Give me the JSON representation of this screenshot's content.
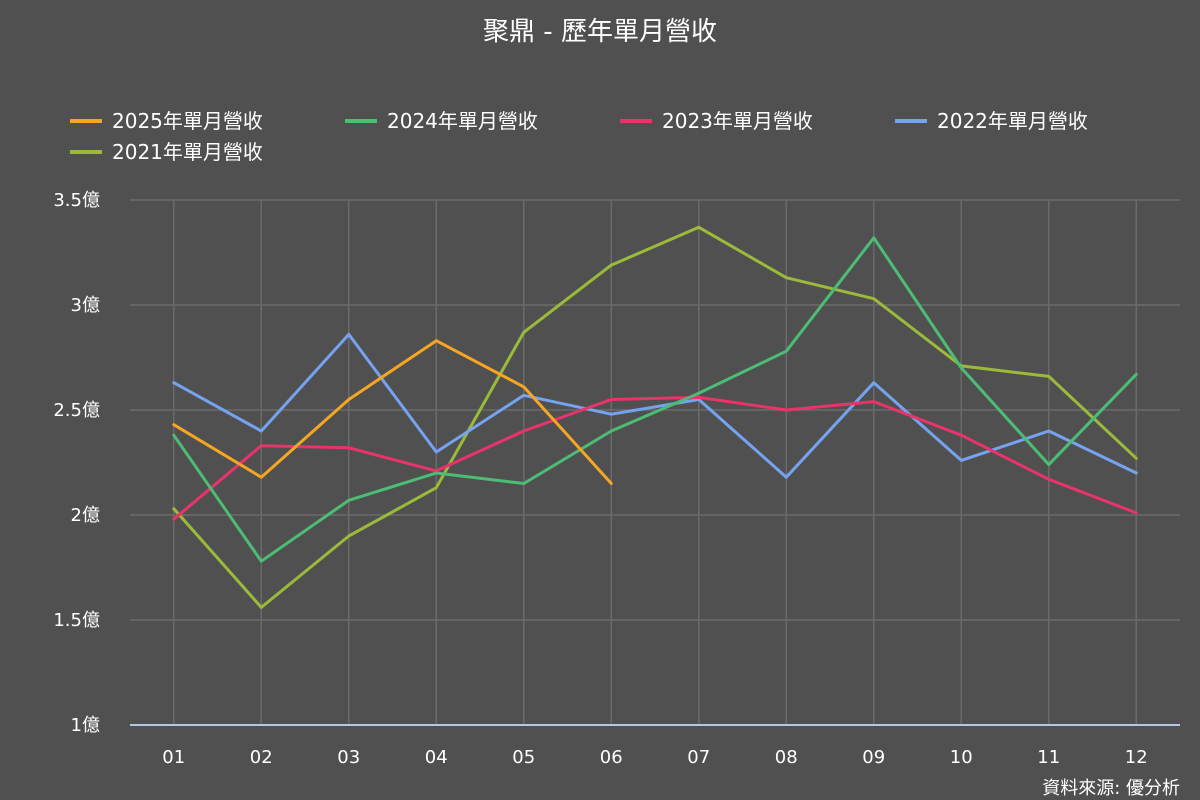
{
  "chart_data": {
    "type": "line",
    "title": "聚鼎 - 歷年單月營收",
    "source": "資料來源: 優分析",
    "legend_position": "top-left",
    "grid": true,
    "y_unit": "億",
    "ylim": [
      1,
      3.5
    ],
    "y_ticks": [
      1,
      1.5,
      2,
      2.5,
      3,
      3.5
    ],
    "y_tick_labels": [
      "1億",
      "1.5億",
      "2億",
      "2.5億",
      "3億",
      "3.5億"
    ],
    "categories": [
      "01",
      "02",
      "03",
      "04",
      "05",
      "06",
      "07",
      "08",
      "09",
      "10",
      "11",
      "12"
    ],
    "series": [
      {
        "name": "2025年單月營收",
        "color": "#f5a623",
        "values": [
          2.43,
          2.18,
          2.55,
          2.83,
          2.61,
          2.15,
          null,
          null,
          null,
          null,
          null,
          null
        ]
      },
      {
        "name": "2024年單月營收",
        "color": "#4cbd74",
        "values": [
          2.38,
          1.78,
          2.07,
          2.2,
          2.15,
          2.4,
          2.58,
          2.78,
          3.32,
          2.7,
          2.24,
          2.67
        ]
      },
      {
        "name": "2023年單月營收",
        "color": "#e8336b",
        "values": [
          1.98,
          2.33,
          2.32,
          2.21,
          2.4,
          2.55,
          2.56,
          2.5,
          2.54,
          2.38,
          2.17,
          2.01
        ]
      },
      {
        "name": "2022年單月營收",
        "color": "#75a3f0",
        "values": [
          2.63,
          2.4,
          2.86,
          2.3,
          2.57,
          2.48,
          2.55,
          2.18,
          2.63,
          2.26,
          2.4,
          2.2
        ]
      },
      {
        "name": "2021年單月營收",
        "color": "#9cba3a",
        "values": [
          2.03,
          1.56,
          1.9,
          2.13,
          2.87,
          3.19,
          3.37,
          3.13,
          3.03,
          2.71,
          2.66,
          2.27
        ]
      }
    ]
  }
}
